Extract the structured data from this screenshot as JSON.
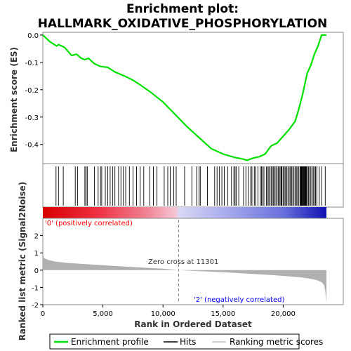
{
  "chart_data": {
    "type": "line",
    "title_lines": [
      "Enrichment plot:",
      "HALLMARK_OXIDATIVE_PHOSPHORYLATION"
    ],
    "es_panel": {
      "ylabel": "Enrichment score (ES)",
      "yticks": [
        0.0,
        -0.1,
        -0.2,
        -0.3,
        -0.4
      ],
      "ytick_labels": [
        "0.0",
        "-0.1",
        "-0.2",
        "-0.3",
        "-0.4"
      ],
      "ylim": [
        -0.47,
        0.01
      ],
      "series": [
        {
          "name": "Enrichment profile",
          "color": "#00e000",
          "x": [
            0,
            600,
            1150,
            1300,
            1800,
            2400,
            2800,
            3200,
            3500,
            3800,
            4300,
            4800,
            5400,
            6000,
            6800,
            7500,
            8200,
            9000,
            10000,
            11000,
            12000,
            13000,
            14000,
            15000,
            16000,
            16500,
            17000,
            17500,
            18000,
            18500,
            19000,
            19500,
            20000,
            20500,
            21000,
            21300,
            21600,
            22000,
            22300,
            22600,
            22900,
            23200,
            23600
          ],
          "y": [
            0.0,
            -0.025,
            -0.04,
            -0.035,
            -0.045,
            -0.075,
            -0.07,
            -0.085,
            -0.09,
            -0.085,
            -0.105,
            -0.115,
            -0.118,
            -0.135,
            -0.15,
            -0.165,
            -0.185,
            -0.21,
            -0.245,
            -0.29,
            -0.335,
            -0.375,
            -0.415,
            -0.435,
            -0.448,
            -0.452,
            -0.458,
            -0.45,
            -0.445,
            -0.435,
            -0.405,
            -0.395,
            -0.37,
            -0.345,
            -0.315,
            -0.27,
            -0.22,
            -0.14,
            -0.11,
            -0.07,
            -0.04,
            0.0,
            0.0
          ]
        }
      ]
    },
    "hits": [
      1100,
      1300,
      1700,
      2700,
      2900,
      3500,
      3600,
      3700,
      4300,
      4600,
      4800,
      4900,
      5200,
      5400,
      5600,
      5800,
      6000,
      6300,
      6500,
      6700,
      6900,
      7200,
      7500,
      7800,
      8100,
      8400,
      8900,
      9200,
      9500,
      10100,
      10400,
      10600,
      10900,
      11100,
      11800,
      12400,
      12800,
      13000,
      13100,
      13700,
      14300,
      14500,
      14700,
      14900,
      15100,
      15400,
      15700,
      15900,
      16000,
      16100,
      16300,
      16700,
      16900,
      17100,
      17300,
      17400,
      17600,
      17700,
      17900,
      18100,
      18200,
      18300,
      18400,
      18600,
      18700,
      18800,
      18900,
      19000,
      19100,
      19200,
      19300,
      19400,
      19500,
      19600,
      19700,
      19800,
      19850,
      19900,
      20000,
      20100,
      20200,
      20300,
      20400,
      20500,
      20600,
      20700,
      20800,
      20900,
      21000,
      21100,
      21200,
      21300,
      21400,
      21450,
      21500,
      21550,
      21600,
      21650,
      21700,
      21750,
      21800,
      21850,
      21900,
      21950,
      22000,
      22100,
      22200,
      22300,
      22400,
      22500,
      22600,
      22700,
      22800,
      23000,
      23200,
      23500
    ],
    "metric_panel": {
      "ylabel": "Ranked list metric (Signal2Noise)",
      "ylim": [
        -2,
        3
      ],
      "yticks": [
        2,
        1,
        0,
        -1,
        -2
      ],
      "ytick_labels": [
        "2",
        "1",
        "0",
        "-1",
        "-2"
      ],
      "x": [
        0,
        100,
        400,
        1000,
        2000,
        4000,
        6000,
        8000,
        10000,
        11301,
        13000,
        15000,
        17000,
        19000,
        20500,
        21500,
        22300,
        22800,
        23200,
        23400,
        23500,
        23600
      ],
      "y": [
        0.95,
        0.7,
        0.6,
        0.5,
        0.42,
        0.33,
        0.24,
        0.16,
        0.08,
        0.0,
        -0.06,
        -0.12,
        -0.2,
        -0.28,
        -0.36,
        -0.42,
        -0.5,
        -0.58,
        -0.7,
        -0.85,
        -1.2,
        -1.85
      ]
    },
    "x_axis": {
      "label": "Rank in Ordered Dataset",
      "xlim": [
        0,
        25000
      ],
      "ticks": [
        0,
        5000,
        10000,
        15000,
        20000
      ],
      "tick_labels": [
        "0",
        "5,000",
        "10,000",
        "15,000",
        "20,000"
      ],
      "total": 23600
    },
    "zero_cross": {
      "x": 11301,
      "label": "Zero cross at 11301"
    },
    "annotations": {
      "positive": "'0' (positively correlated)",
      "negative": "'2' (negatively correlated)"
    },
    "colors": {
      "es_line": "#00e000",
      "positive_label": "#ff0000",
      "negative_label": "#0000ff",
      "metric_fill": "#b0b0b0"
    },
    "legend": {
      "placement": "bottom",
      "items": [
        {
          "label": "Enrichment profile",
          "color": "#00e000"
        },
        {
          "label": "Hits",
          "color": "#000000"
        },
        {
          "label": "Ranking metric scores",
          "color": "#c0c0c0"
        }
      ]
    }
  }
}
